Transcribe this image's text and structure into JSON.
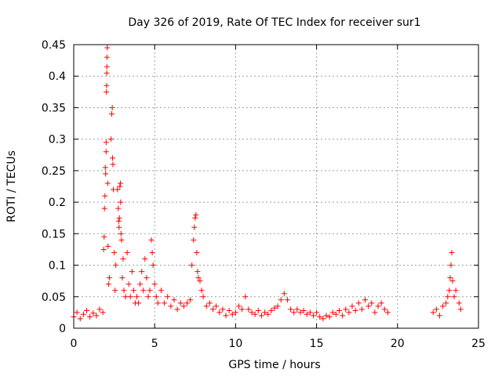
{
  "chart_data": {
    "type": "scatter",
    "title": "Day 326 of 2019, Rate Of TEC Index for receiver sur1",
    "xlabel": "GPS time / hours",
    "ylabel": "ROTI / TECUs",
    "xlim": [
      0,
      25
    ],
    "ylim": [
      0,
      0.45
    ],
    "xticks": [
      "0",
      "5",
      "10",
      "15",
      "20",
      "25"
    ],
    "yticks": [
      "0",
      "0.05",
      "0.1",
      "0.15",
      "0.2",
      "0.25",
      "0.3",
      "0.35",
      "0.4",
      "0.45"
    ],
    "grid": true,
    "marker": "+",
    "color": "#ff0000",
    "series": [
      {
        "points": [
          [
            0.0,
            0.018
          ],
          [
            0.2,
            0.025
          ],
          [
            0.4,
            0.015
          ],
          [
            0.6,
            0.022
          ],
          [
            0.8,
            0.028
          ],
          [
            1.0,
            0.018
          ],
          [
            1.2,
            0.024
          ],
          [
            1.4,
            0.02
          ],
          [
            1.6,
            0.03
          ],
          [
            1.8,
            0.025
          ],
          [
            1.85,
            0.125
          ],
          [
            1.88,
            0.145
          ],
          [
            1.9,
            0.19
          ],
          [
            1.93,
            0.21
          ],
          [
            1.95,
            0.255
          ],
          [
            1.97,
            0.245
          ],
          [
            2.0,
            0.28
          ],
          [
            2.0,
            0.295
          ],
          [
            2.02,
            0.375
          ],
          [
            2.03,
            0.385
          ],
          [
            2.04,
            0.405
          ],
          [
            2.05,
            0.415
          ],
          [
            2.05,
            0.43
          ],
          [
            2.07,
            0.445
          ],
          [
            2.1,
            0.23
          ],
          [
            2.12,
            0.13
          ],
          [
            2.15,
            0.07
          ],
          [
            2.2,
            0.08
          ],
          [
            2.3,
            0.3
          ],
          [
            2.35,
            0.34
          ],
          [
            2.38,
            0.35
          ],
          [
            2.4,
            0.27
          ],
          [
            2.42,
            0.26
          ],
          [
            2.45,
            0.22
          ],
          [
            2.5,
            0.12
          ],
          [
            2.55,
            0.06
          ],
          [
            2.6,
            0.1
          ],
          [
            2.7,
            0.22
          ],
          [
            2.75,
            0.19
          ],
          [
            2.78,
            0.17
          ],
          [
            2.8,
            0.16
          ],
          [
            2.82,
            0.175
          ],
          [
            2.85,
            0.225
          ],
          [
            2.88,
            0.23
          ],
          [
            2.9,
            0.2
          ],
          [
            2.92,
            0.15
          ],
          [
            2.95,
            0.14
          ],
          [
            3.0,
            0.08
          ],
          [
            3.05,
            0.11
          ],
          [
            3.1,
            0.06
          ],
          [
            3.2,
            0.05
          ],
          [
            3.3,
            0.12
          ],
          [
            3.4,
            0.07
          ],
          [
            3.5,
            0.05
          ],
          [
            3.6,
            0.09
          ],
          [
            3.7,
            0.06
          ],
          [
            3.8,
            0.04
          ],
          [
            3.9,
            0.05
          ],
          [
            4.0,
            0.04
          ],
          [
            4.1,
            0.07
          ],
          [
            4.2,
            0.09
          ],
          [
            4.3,
            0.06
          ],
          [
            4.4,
            0.11
          ],
          [
            4.5,
            0.08
          ],
          [
            4.6,
            0.05
          ],
          [
            4.7,
            0.06
          ],
          [
            4.8,
            0.14
          ],
          [
            4.85,
            0.12
          ],
          [
            4.9,
            0.1
          ],
          [
            5.0,
            0.07
          ],
          [
            5.1,
            0.05
          ],
          [
            5.2,
            0.04
          ],
          [
            5.4,
            0.06
          ],
          [
            5.6,
            0.04
          ],
          [
            5.8,
            0.05
          ],
          [
            6.0,
            0.035
          ],
          [
            6.2,
            0.045
          ],
          [
            6.4,
            0.03
          ],
          [
            6.6,
            0.04
          ],
          [
            6.8,
            0.035
          ],
          [
            7.0,
            0.04
          ],
          [
            7.2,
            0.045
          ],
          [
            7.3,
            0.1
          ],
          [
            7.4,
            0.14
          ],
          [
            7.45,
            0.16
          ],
          [
            7.5,
            0.175
          ],
          [
            7.55,
            0.18
          ],
          [
            7.6,
            0.12
          ],
          [
            7.65,
            0.09
          ],
          [
            7.7,
            0.08
          ],
          [
            7.8,
            0.075
          ],
          [
            7.9,
            0.06
          ],
          [
            8.0,
            0.05
          ],
          [
            8.2,
            0.035
          ],
          [
            8.4,
            0.04
          ],
          [
            8.6,
            0.03
          ],
          [
            8.8,
            0.035
          ],
          [
            9.0,
            0.025
          ],
          [
            9.2,
            0.03
          ],
          [
            9.4,
            0.02
          ],
          [
            9.6,
            0.028
          ],
          [
            9.8,
            0.022
          ],
          [
            10.0,
            0.025
          ],
          [
            10.2,
            0.035
          ],
          [
            10.4,
            0.03
          ],
          [
            10.6,
            0.05
          ],
          [
            10.8,
            0.03
          ],
          [
            11.0,
            0.025
          ],
          [
            11.2,
            0.022
          ],
          [
            11.4,
            0.028
          ],
          [
            11.6,
            0.02
          ],
          [
            11.8,
            0.025
          ],
          [
            12.0,
            0.022
          ],
          [
            12.2,
            0.028
          ],
          [
            12.4,
            0.032
          ],
          [
            12.6,
            0.035
          ],
          [
            12.8,
            0.045
          ],
          [
            13.0,
            0.055
          ],
          [
            13.2,
            0.045
          ],
          [
            13.4,
            0.03
          ],
          [
            13.6,
            0.025
          ],
          [
            13.8,
            0.03
          ],
          [
            14.0,
            0.025
          ],
          [
            14.2,
            0.028
          ],
          [
            14.4,
            0.022
          ],
          [
            14.6,
            0.025
          ],
          [
            14.8,
            0.02
          ],
          [
            15.0,
            0.025
          ],
          [
            15.2,
            0.018
          ],
          [
            15.4,
            0.015
          ],
          [
            15.6,
            0.02
          ],
          [
            15.8,
            0.018
          ],
          [
            16.0,
            0.025
          ],
          [
            16.2,
            0.022
          ],
          [
            16.4,
            0.028
          ],
          [
            16.6,
            0.02
          ],
          [
            16.8,
            0.03
          ],
          [
            17.0,
            0.025
          ],
          [
            17.2,
            0.035
          ],
          [
            17.4,
            0.028
          ],
          [
            17.6,
            0.04
          ],
          [
            17.8,
            0.03
          ],
          [
            18.0,
            0.045
          ],
          [
            18.2,
            0.035
          ],
          [
            18.4,
            0.04
          ],
          [
            18.6,
            0.025
          ],
          [
            18.8,
            0.035
          ],
          [
            19.0,
            0.04
          ],
          [
            19.2,
            0.03
          ],
          [
            19.4,
            0.025
          ],
          [
            22.2,
            0.025
          ],
          [
            22.4,
            0.03
          ],
          [
            22.6,
            0.02
          ],
          [
            22.8,
            0.035
          ],
          [
            23.0,
            0.04
          ],
          [
            23.1,
            0.05
          ],
          [
            23.2,
            0.06
          ],
          [
            23.25,
            0.08
          ],
          [
            23.3,
            0.1
          ],
          [
            23.35,
            0.12
          ],
          [
            23.4,
            0.075
          ],
          [
            23.5,
            0.05
          ],
          [
            23.6,
            0.06
          ],
          [
            23.8,
            0.04
          ],
          [
            23.9,
            0.03
          ]
        ]
      }
    ]
  }
}
